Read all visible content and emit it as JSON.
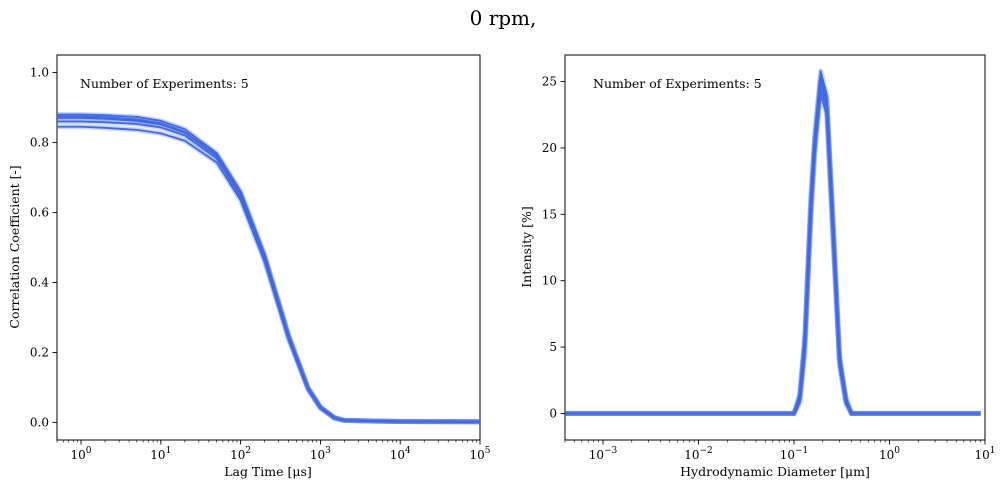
{
  "figure": {
    "title": "0 rpm,"
  },
  "chart_data": [
    {
      "type": "line",
      "xlabel": "Lag Time [μs]",
      "ylabel": "Correlation Coefficient [-]",
      "annotation": "Number of Experiments: 5",
      "xscale": "log",
      "xlim": [
        0.5,
        100000
      ],
      "ylim": [
        -0.05,
        1.05
      ],
      "xticks": [
        1,
        10,
        100,
        1000,
        10000,
        100000
      ],
      "xticklabels": [
        {
          "base": "10",
          "exp": "0"
        },
        {
          "base": "10",
          "exp": "1"
        },
        {
          "base": "10",
          "exp": "2"
        },
        {
          "base": "10",
          "exp": "3"
        },
        {
          "base": "10",
          "exp": "4"
        },
        {
          "base": "10",
          "exp": "5"
        }
      ],
      "yticks": [
        0.0,
        0.2,
        0.4,
        0.6,
        0.8,
        1.0
      ],
      "yticklabels": [
        "0.0",
        "0.2",
        "0.4",
        "0.6",
        "0.8",
        "1.0"
      ],
      "grid": false,
      "line_color": "#4169e1",
      "x": [
        0.5,
        1,
        2,
        5,
        10,
        20,
        50,
        100,
        200,
        400,
        700,
        1000,
        1500,
        2000,
        5000,
        10000,
        100000
      ],
      "series": [
        {
          "values": [
            0.88,
            0.88,
            0.878,
            0.873,
            0.862,
            0.838,
            0.77,
            0.66,
            0.48,
            0.25,
            0.1,
            0.045,
            0.014,
            0.006,
            0.004,
            0.003,
            0.002
          ]
        },
        {
          "values": [
            0.87,
            0.87,
            0.868,
            0.862,
            0.852,
            0.828,
            0.762,
            0.652,
            0.472,
            0.245,
            0.098,
            0.043,
            0.013,
            0.006,
            0.004,
            0.003,
            0.002
          ]
        },
        {
          "values": [
            0.86,
            0.86,
            0.858,
            0.853,
            0.843,
            0.82,
            0.755,
            0.645,
            0.466,
            0.241,
            0.096,
            0.042,
            0.013,
            0.006,
            0.004,
            0.003,
            0.002
          ]
        },
        {
          "values": [
            0.875,
            0.875,
            0.872,
            0.866,
            0.855,
            0.83,
            0.764,
            0.655,
            0.476,
            0.248,
            0.099,
            0.044,
            0.014,
            0.006,
            0.004,
            0.003,
            0.002
          ]
        },
        {
          "values": [
            0.845,
            0.845,
            0.842,
            0.836,
            0.826,
            0.805,
            0.743,
            0.635,
            0.459,
            0.237,
            0.094,
            0.041,
            0.012,
            0.006,
            0.004,
            0.003,
            0.002
          ]
        }
      ]
    },
    {
      "type": "line",
      "xlabel": "Hydrodynamic Diameter [μm]",
      "ylabel": "Intensity [%]",
      "annotation": "Number of Experiments: 5",
      "xscale": "log",
      "xlim": [
        0.0004,
        10
      ],
      "ylim": [
        -2,
        27
      ],
      "xticks": [
        0.001,
        0.01,
        0.1,
        1,
        10
      ],
      "xticklabels": [
        {
          "base": "10",
          "exp": "−3"
        },
        {
          "base": "10",
          "exp": "−2"
        },
        {
          "base": "10",
          "exp": "−1"
        },
        {
          "base": "10",
          "exp": "0"
        },
        {
          "base": "10",
          "exp": "1"
        }
      ],
      "yticks": [
        0,
        5,
        10,
        15,
        20,
        25
      ],
      "yticklabels": [
        "0",
        "5",
        "10",
        "15",
        "20",
        "25"
      ],
      "grid": false,
      "line_color": "#4169e1",
      "x": [
        0.0004,
        0.01,
        0.1,
        0.115,
        0.13,
        0.15,
        0.165,
        0.19,
        0.22,
        0.26,
        0.3,
        0.35,
        0.4,
        0.45,
        1,
        9
      ],
      "series": [
        {
          "values": [
            0,
            0,
            0,
            1.5,
            6.0,
            16.5,
            21.0,
            25.8,
            24.0,
            14.0,
            4.5,
            1.2,
            0,
            0,
            0,
            0
          ]
        },
        {
          "values": [
            0,
            0,
            0,
            1.2,
            5.5,
            15.5,
            20.5,
            25.0,
            23.5,
            13.0,
            4.0,
            1.0,
            0,
            0,
            0,
            0
          ]
        },
        {
          "values": [
            0,
            0,
            0,
            1.0,
            5.0,
            15.0,
            20.0,
            24.5,
            23.0,
            12.5,
            3.8,
            0.8,
            0,
            0,
            0,
            0
          ]
        },
        {
          "values": [
            0,
            0,
            0,
            1.3,
            5.8,
            16.0,
            20.8,
            25.3,
            23.7,
            13.5,
            4.2,
            1.1,
            0,
            0,
            0,
            0
          ]
        },
        {
          "values": [
            0,
            0,
            0,
            0.8,
            4.5,
            14.5,
            19.5,
            24.0,
            22.5,
            12.0,
            3.5,
            0.7,
            0,
            0,
            0,
            0
          ]
        }
      ]
    }
  ]
}
